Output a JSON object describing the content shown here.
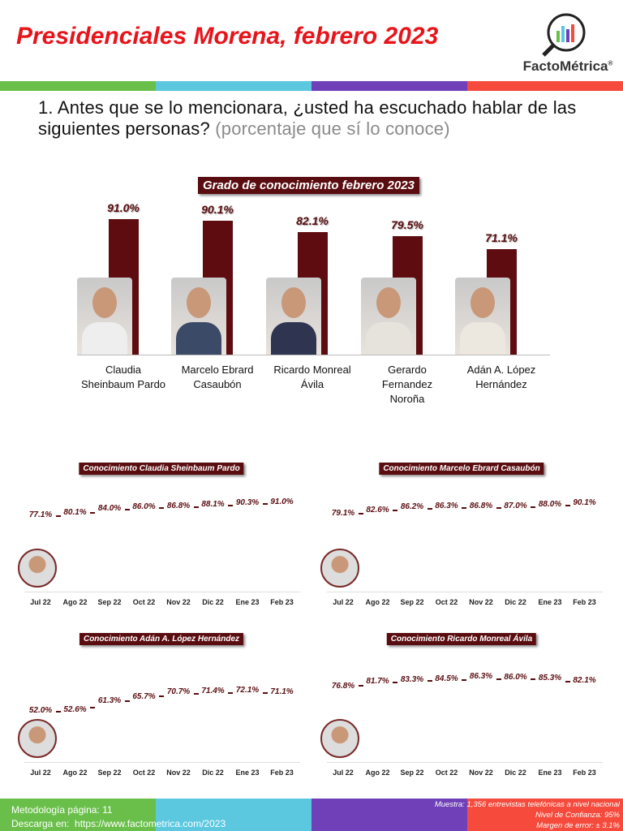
{
  "header": {
    "title": "Presidenciales Morena, febrero 2023",
    "logo_text": "FactoMétrica",
    "logo_mark": "®"
  },
  "colors": {
    "stripe": [
      "#6abf4b",
      "#5bc8e0",
      "#7040b8",
      "#f54a3c"
    ],
    "accent": "#e8141b",
    "bar": "#5e0c10"
  },
  "question": {
    "text": "1. Antes que se lo mencionara, ¿usted ha escuchado hablar de las siguientes personas?",
    "sub": "(porcentaje que sí lo conoce)"
  },
  "chart_data": [
    {
      "type": "bar",
      "title": "Grado de conocimiento febrero 2023",
      "categories": [
        "Claudia Sheinbaum Pardo",
        "Marcelo Ebrard Casaubón",
        "Ricardo Monreal Ávila",
        "Gerardo Fernandez Noroña",
        "Adán A. López Hernández"
      ],
      "values": [
        91.0,
        90.1,
        82.1,
        79.5,
        71.1
      ],
      "labels": [
        "91.0%",
        "90.1%",
        "82.1%",
        "79.5%",
        "71.1%"
      ],
      "name_lines": [
        [
          "Claudia",
          "Sheinbaum Pardo"
        ],
        [
          "Marcelo Ebrard",
          "Casaubón"
        ],
        [
          "Ricardo Monreal",
          "Ávila"
        ],
        [
          "Gerardo",
          "Fernandez",
          "Noroña"
        ],
        [
          "Adán A. López",
          "Hernández"
        ]
      ],
      "ylim": [
        0,
        100
      ]
    },
    {
      "type": "line",
      "title": "Conocimiento Claudia Sheinbaum Pardo",
      "categories": [
        "Jul 22",
        "Ago 22",
        "Sep 22",
        "Oct 22",
        "Nov 22",
        "Dic 22",
        "Ene 23",
        "Feb 23"
      ],
      "values": [
        77.1,
        80.1,
        84.0,
        86.0,
        86.8,
        88.1,
        90.3,
        91.0
      ]
    },
    {
      "type": "line",
      "title": "Conocimiento Marcelo Ebrard Casaubón",
      "categories": [
        "Jul 22",
        "Ago 22",
        "Sep 22",
        "Oct 22",
        "Nov 22",
        "Dic 22",
        "Ene 23",
        "Feb 23"
      ],
      "values": [
        79.1,
        82.6,
        86.2,
        86.3,
        86.8,
        87.0,
        88.0,
        90.1
      ]
    },
    {
      "type": "line",
      "title": "Conocimiento Adán A. López Hernández",
      "categories": [
        "Jul 22",
        "Ago 22",
        "Sep 22",
        "Oct 22",
        "Nov 22",
        "Dic 22",
        "Ene 23",
        "Feb 23"
      ],
      "values": [
        52.0,
        52.6,
        61.3,
        65.7,
        70.7,
        71.4,
        72.1,
        71.1
      ]
    },
    {
      "type": "line",
      "title": "Conocimiento Ricardo Monreal Ávila",
      "categories": [
        "Jul 22",
        "Ago 22",
        "Sep 22",
        "Oct 22",
        "Nov 22",
        "Dic 22",
        "Ene 23",
        "Feb 23"
      ],
      "values": [
        76.8,
        81.7,
        83.3,
        84.5,
        86.3,
        86.0,
        85.3,
        82.1
      ]
    }
  ],
  "footer": {
    "metodologia": "Metodología página: 11",
    "descarga_label": "Descarga en:",
    "url": "https://www.factometrica.com/2023",
    "muestra": "Muestra:  1,356 entrevistas telefónicas a nivel nacional",
    "confianza": "Nivel de Confianza: 95%",
    "margen": "Margen de error: ± 3.1%"
  }
}
